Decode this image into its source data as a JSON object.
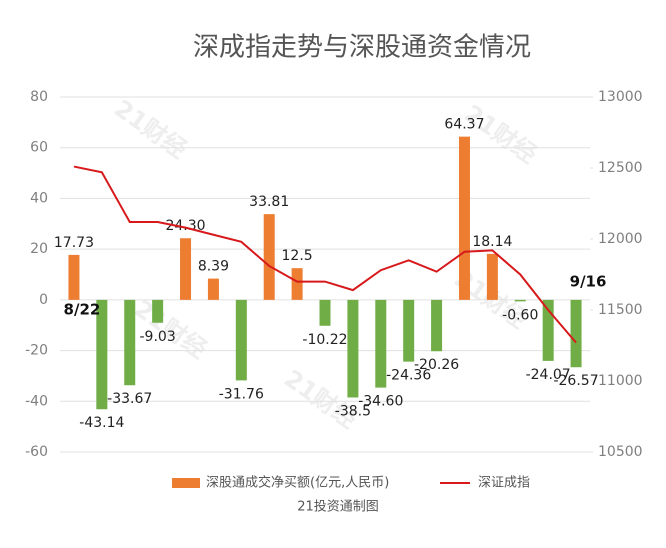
{
  "chart_data": {
    "type": "bar_line",
    "title": "深成指走势与深股通资金情况",
    "categories": [
      "8/22",
      null,
      null,
      null,
      null,
      null,
      null,
      null,
      null,
      null,
      null,
      null,
      null,
      null,
      null,
      null,
      null,
      null,
      "9/16"
    ],
    "series": [
      {
        "name": "深股通成交净买额(亿元,人民币)",
        "type": "bar",
        "color": "#ed7d31",
        "negative_color": "#70ad47",
        "values": [
          17.73,
          -43.14,
          -33.67,
          -9.03,
          24.3,
          8.39,
          -31.76,
          33.81,
          12.5,
          -10.22,
          -38.5,
          -34.6,
          -24.36,
          -20.26,
          64.37,
          18.14,
          -0.6,
          -24.07,
          -26.57
        ],
        "value_labels": [
          "17.73",
          "-43.14",
          "-33.67",
          "-9.03",
          "24.30",
          "8.39",
          "-31.76",
          "33.81",
          "12.5",
          "-10.22",
          "-38.5",
          "-34.60",
          "-24.36",
          "-20.26",
          "64.37",
          "18.14",
          "-0.60",
          "-24.07",
          "-26.57"
        ]
      },
      {
        "name": "深证成指",
        "type": "line",
        "axis": "y2",
        "color": "#d7191c",
        "values": [
          12510,
          12470,
          12120,
          12120,
          12080,
          12030,
          11980,
          11810,
          11700,
          11700,
          11640,
          11780,
          11850,
          11770,
          11910,
          11920,
          11750,
          11500,
          11270
        ]
      }
    ],
    "ylim": [
      -60,
      80
    ],
    "yticks": [
      -60,
      -40,
      -20,
      0,
      20,
      40,
      60,
      80
    ],
    "y2lim": [
      10500,
      13000
    ],
    "y2ticks": [
      10500,
      11000,
      11500,
      12000,
      12500,
      13000
    ],
    "grid": true,
    "legend": "bottom",
    "source": "21投资通制图",
    "watermark": "21财经"
  }
}
